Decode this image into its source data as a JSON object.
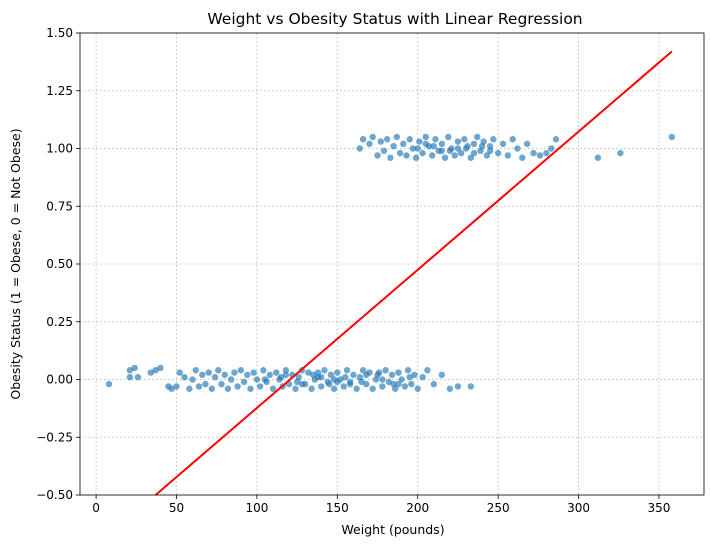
{
  "chart_data": {
    "type": "scatter",
    "title": "Weight vs Obesity Status with Linear Regression",
    "xlabel": "Weight (pounds)",
    "ylabel": "Obesity Status (1 = Obese, 0 = Not Obese)",
    "xlim": [
      -10,
      378
    ],
    "ylim": [
      -0.5,
      1.5
    ],
    "x_ticks": [
      0,
      50,
      100,
      150,
      200,
      250,
      300,
      350
    ],
    "y_ticks": [
      -0.5,
      -0.25,
      0.0,
      0.25,
      0.5,
      0.75,
      1.0,
      1.25,
      1.5
    ],
    "y_tick_labels": [
      "−0.50",
      "−0.25",
      "0.00",
      "0.25",
      "0.50",
      "0.75",
      "1.00",
      "1.25",
      "1.50"
    ],
    "grid": true,
    "point_color": "#1f77b4",
    "line_color": "#ff0000",
    "series": [
      {
        "type": "scatter",
        "points": [
          [
            8,
            -0.02
          ],
          [
            21,
            0.04
          ],
          [
            21,
            0.01
          ],
          [
            24,
            0.05
          ],
          [
            26,
            0.01
          ],
          [
            34,
            0.03
          ],
          [
            37,
            0.04
          ],
          [
            40,
            0.05
          ],
          [
            45,
            -0.03
          ],
          [
            47,
            -0.04
          ],
          [
            50,
            -0.03
          ],
          [
            52,
            0.03
          ],
          [
            55,
            0.01
          ],
          [
            58,
            -0.04
          ],
          [
            60,
            0.0
          ],
          [
            62,
            0.04
          ],
          [
            64,
            -0.03
          ],
          [
            66,
            0.02
          ],
          [
            68,
            -0.02
          ],
          [
            70,
            0.03
          ],
          [
            72,
            -0.04
          ],
          [
            74,
            0.01
          ],
          [
            76,
            0.04
          ],
          [
            78,
            -0.02
          ],
          [
            80,
            0.02
          ],
          [
            82,
            -0.04
          ],
          [
            84,
            0.0
          ],
          [
            86,
            0.03
          ],
          [
            88,
            -0.03
          ],
          [
            90,
            0.04
          ],
          [
            92,
            -0.01
          ],
          [
            94,
            0.02
          ],
          [
            96,
            -0.04
          ],
          [
            98,
            0.03
          ],
          [
            100,
            0.0
          ],
          [
            102,
            -0.03
          ],
          [
            104,
            0.04
          ],
          [
            106,
            -0.01
          ],
          [
            108,
            0.02
          ],
          [
            110,
            -0.04
          ],
          [
            112,
            0.03
          ],
          [
            114,
            0.0
          ],
          [
            116,
            -0.03
          ],
          [
            118,
            0.04
          ],
          [
            120,
            -0.02
          ],
          [
            122,
            0.02
          ],
          [
            124,
            -0.04
          ],
          [
            126,
            0.01
          ],
          [
            128,
            0.04
          ],
          [
            130,
            -0.02
          ],
          [
            132,
            0.03
          ],
          [
            134,
            -0.04
          ],
          [
            136,
            0.0
          ],
          [
            138,
            0.03
          ],
          [
            140,
            -0.03
          ],
          [
            142,
            0.04
          ],
          [
            144,
            -0.01
          ],
          [
            146,
            0.02
          ],
          [
            148,
            -0.04
          ],
          [
            150,
            0.03
          ],
          [
            152,
            0.0
          ],
          [
            154,
            -0.03
          ],
          [
            156,
            0.04
          ],
          [
            158,
            -0.02
          ],
          [
            160,
            0.02
          ],
          [
            162,
            -0.04
          ],
          [
            164,
            0.01
          ],
          [
            166,
            0.04
          ],
          [
            168,
            -0.02
          ],
          [
            170,
            0.03
          ],
          [
            172,
            -0.04
          ],
          [
            174,
            0.0
          ],
          [
            176,
            0.03
          ],
          [
            178,
            -0.03
          ],
          [
            180,
            0.04
          ],
          [
            182,
            -0.01
          ],
          [
            184,
            0.02
          ],
          [
            186,
            -0.04
          ],
          [
            188,
            0.03
          ],
          [
            190,
            0.0
          ],
          [
            192,
            -0.03
          ],
          [
            194,
            0.04
          ],
          [
            196,
            -0.02
          ],
          [
            198,
            0.02
          ],
          [
            200,
            -0.04
          ],
          [
            203,
            0.01
          ],
          [
            206,
            0.04
          ],
          [
            210,
            -0.02
          ],
          [
            215,
            0.02
          ],
          [
            220,
            -0.04
          ],
          [
            225,
            -0.03
          ],
          [
            233,
            -0.03
          ],
          [
            115,
            0.01
          ],
          [
            125,
            -0.01
          ],
          [
            135,
            0.02
          ],
          [
            145,
            -0.02
          ],
          [
            155,
            0.01
          ],
          [
            165,
            -0.01
          ],
          [
            175,
            0.02
          ],
          [
            185,
            -0.02
          ],
          [
            195,
            0.01
          ],
          [
            105,
            0.0
          ],
          [
            118,
            0.02
          ],
          [
            128,
            -0.02
          ],
          [
            138,
            0.01
          ],
          [
            148,
            0.0
          ],
          [
            158,
            -0.01
          ],
          [
            168,
            0.02
          ],
          [
            178,
            0.0
          ],
          [
            188,
            -0.02
          ],
          [
            140,
            0.01
          ],
          [
            150,
            -0.01
          ],
          [
            164,
            1.0
          ],
          [
            166,
            1.04
          ],
          [
            170,
            1.02
          ],
          [
            172,
            1.05
          ],
          [
            175,
            0.97
          ],
          [
            177,
            1.03
          ],
          [
            179,
            0.99
          ],
          [
            181,
            1.04
          ],
          [
            183,
            0.96
          ],
          [
            185,
            1.01
          ],
          [
            187,
            1.05
          ],
          [
            189,
            0.98
          ],
          [
            191,
            1.02
          ],
          [
            193,
            0.97
          ],
          [
            195,
            1.04
          ],
          [
            197,
            1.0
          ],
          [
            199,
            0.96
          ],
          [
            201,
            1.03
          ],
          [
            203,
            0.98
          ],
          [
            205,
            1.05
          ],
          [
            207,
            1.01
          ],
          [
            209,
            0.97
          ],
          [
            211,
            1.04
          ],
          [
            213,
            0.99
          ],
          [
            215,
            1.02
          ],
          [
            217,
            0.96
          ],
          [
            219,
            1.05
          ],
          [
            221,
            1.0
          ],
          [
            223,
            0.97
          ],
          [
            225,
            1.03
          ],
          [
            227,
            0.98
          ],
          [
            229,
            1.04
          ],
          [
            231,
            1.01
          ],
          [
            233,
            0.96
          ],
          [
            235,
            1.02
          ],
          [
            237,
            1.05
          ],
          [
            239,
            0.99
          ],
          [
            241,
            1.03
          ],
          [
            243,
            0.97
          ],
          [
            245,
            1.01
          ],
          [
            247,
            1.04
          ],
          [
            250,
            0.98
          ],
          [
            253,
            1.02
          ],
          [
            256,
            0.97
          ],
          [
            259,
            1.04
          ],
          [
            262,
            1.0
          ],
          [
            265,
            0.96
          ],
          [
            268,
            1.02
          ],
          [
            272,
            0.98
          ],
          [
            276,
            0.97
          ],
          [
            280,
            0.98
          ],
          [
            283,
            1.0
          ],
          [
            286,
            1.04
          ],
          [
            312,
            0.96
          ],
          [
            326,
            0.98
          ],
          [
            358,
            1.05
          ],
          [
            200,
            1.0
          ],
          [
            210,
            1.01
          ],
          [
            220,
            0.99
          ],
          [
            230,
            1.0
          ],
          [
            240,
            1.01
          ],
          [
            215,
            0.99
          ],
          [
            225,
            1.0
          ],
          [
            205,
            1.02
          ],
          [
            235,
            0.98
          ],
          [
            245,
            0.99
          ]
        ]
      },
      {
        "type": "line",
        "x": [
          37,
          358
        ],
        "y": [
          -0.5,
          1.42
        ]
      }
    ]
  }
}
